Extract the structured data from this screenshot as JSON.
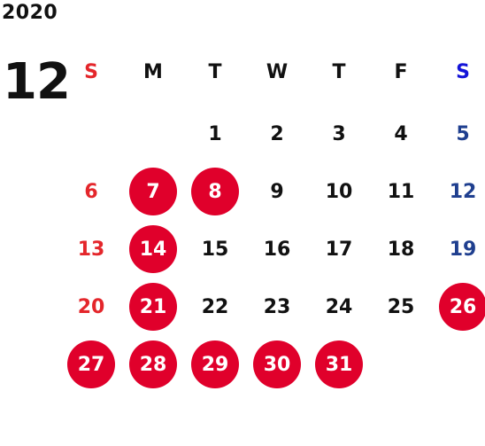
{
  "year": "2020",
  "month": "12",
  "weekday_headers": [
    "S",
    "M",
    "T",
    "W",
    "T",
    "F",
    "S"
  ],
  "weeks": [
    [
      "",
      "",
      "1",
      "2",
      "3",
      "4",
      "5"
    ],
    [
      "6",
      "7",
      "8",
      "9",
      "10",
      "11",
      "12"
    ],
    [
      "13",
      "14",
      "15",
      "16",
      "17",
      "18",
      "19"
    ],
    [
      "20",
      "21",
      "22",
      "23",
      "24",
      "25",
      "26"
    ],
    [
      "27",
      "28",
      "29",
      "30",
      "31",
      "",
      ""
    ]
  ],
  "marked_days": [
    "7",
    "8",
    "14",
    "21",
    "26",
    "27",
    "28",
    "29",
    "30",
    "31"
  ],
  "colors": {
    "sunday": "#e4262b",
    "saturday": "#1f3f8f",
    "saturday_header": "#1414d8",
    "marker": "#e0002b",
    "text": "#111111"
  }
}
